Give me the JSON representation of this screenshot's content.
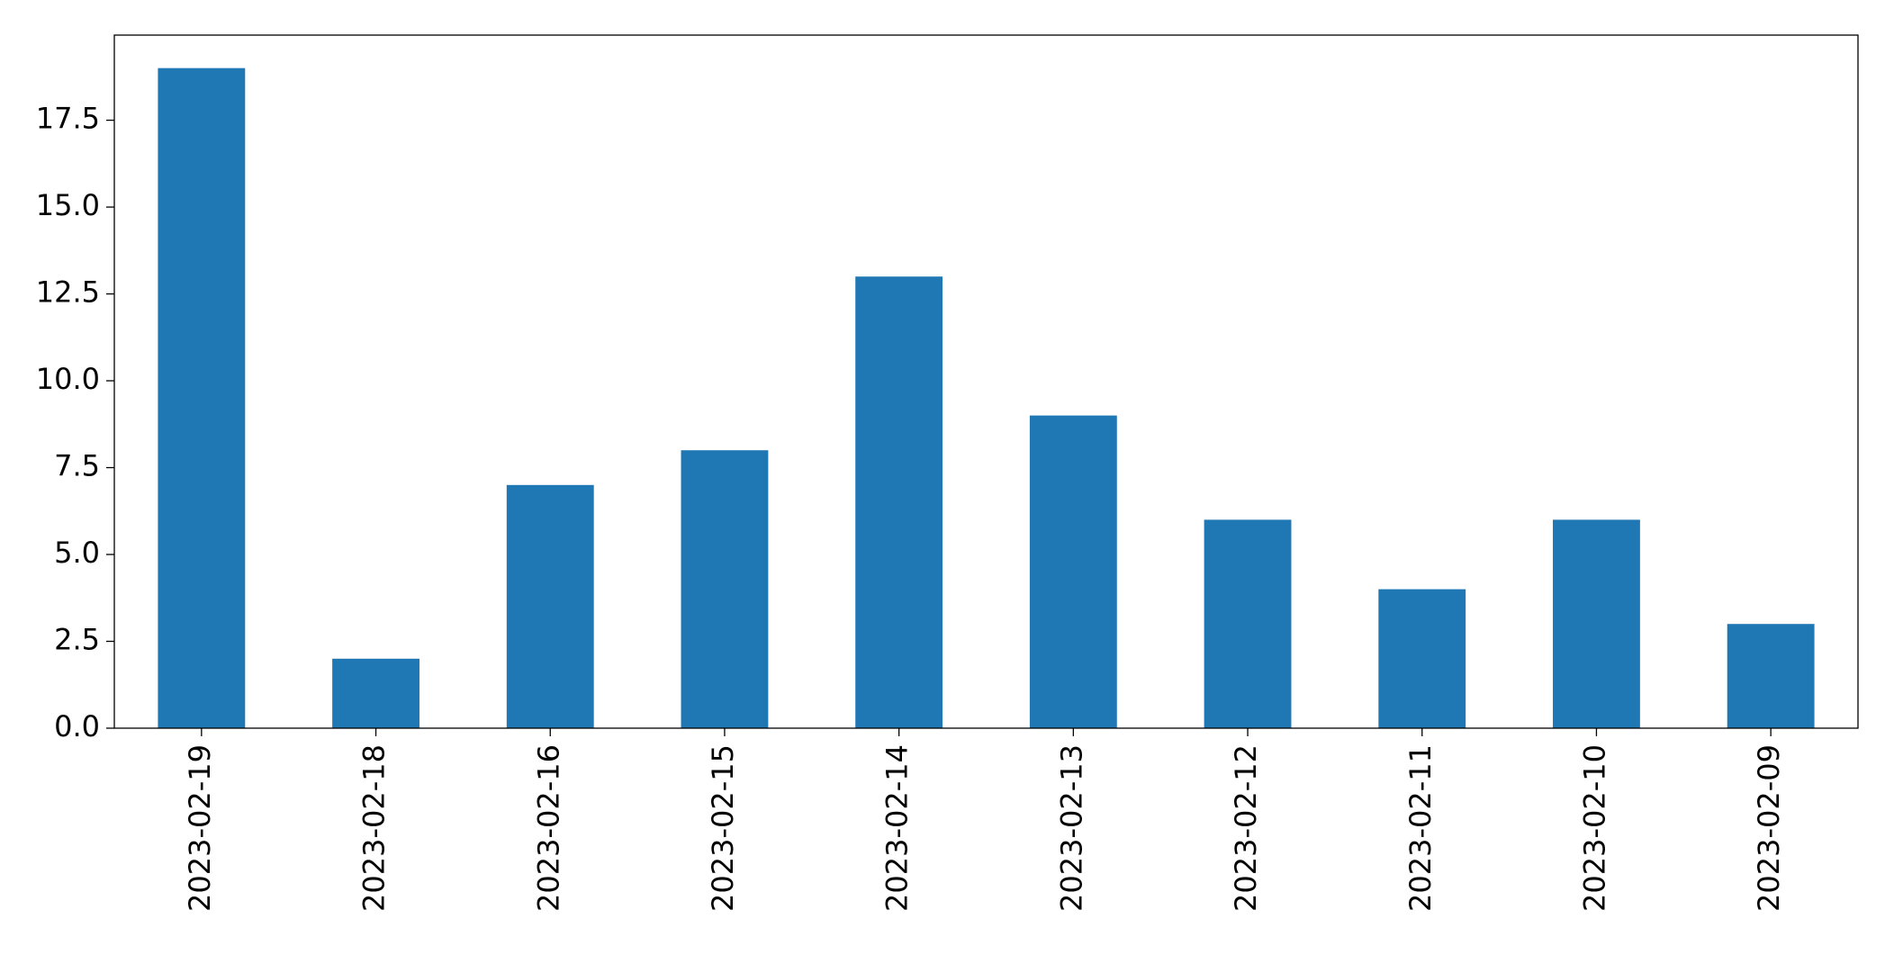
{
  "chart_data": {
    "type": "bar",
    "categories": [
      "2023-02-19",
      "2023-02-18",
      "2023-02-16",
      "2023-02-15",
      "2023-02-14",
      "2023-02-13",
      "2023-02-12",
      "2023-02-11",
      "2023-02-10",
      "2023-02-09"
    ],
    "values": [
      19,
      2,
      7,
      8,
      13,
      9,
      6,
      4,
      6,
      3
    ],
    "color": "#1f77b4",
    "ylim": [
      0,
      19.95
    ],
    "yticks": [
      {
        "value": 0,
        "label": "0.0"
      },
      2.5,
      {
        "value": 5,
        "label": "5.0"
      },
      7.5,
      {
        "value": 10,
        "label": "10.0"
      },
      12.5,
      {
        "value": 15,
        "label": "15.0"
      },
      17.5
    ],
    "grid": false
  }
}
